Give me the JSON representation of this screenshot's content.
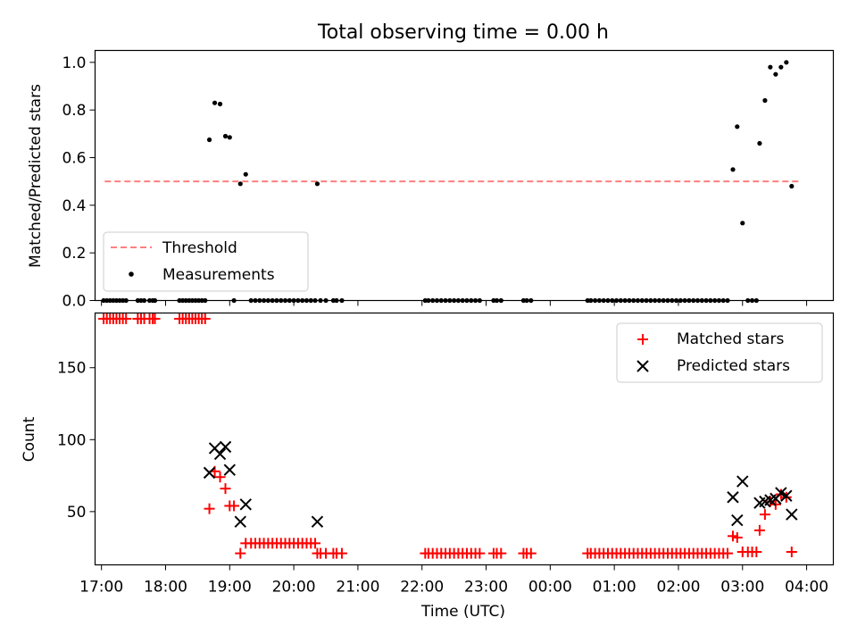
{
  "figure": {
    "title": "Total observing time = 0.00 h",
    "xlabel": "Time (UTC)",
    "x_tick_labels": [
      "17:00",
      "18:00",
      "19:00",
      "20:00",
      "21:00",
      "22:00",
      "23:00",
      "00:00",
      "01:00",
      "02:00",
      "03:00",
      "04:00"
    ]
  },
  "chart_data": [
    {
      "type": "scatter",
      "panel": "top",
      "ylabel": "Matched/Predicted stars",
      "xlim": [
        "16:54",
        "04:25"
      ],
      "ylim": [
        0,
        1.05
      ],
      "y_ticks": [
        0.0,
        0.2,
        0.4,
        0.6,
        0.8,
        1.0
      ],
      "y_tick_labels": [
        "0.0",
        "0.2",
        "0.4",
        "0.6",
        "0.8",
        "1.0"
      ],
      "legend": {
        "position": "lower-left",
        "entries": [
          "Threshold",
          "Measurements"
        ]
      },
      "threshold": {
        "name": "Threshold",
        "y": 0.5,
        "x_range": [
          "17:03",
          "03:53"
        ],
        "color": "#ff7f7f",
        "style": "dashed"
      },
      "series": [
        {
          "name": "Measurements",
          "color": "#000000",
          "points": [
            [
              "17:02",
              0
            ],
            [
              "17:05",
              0
            ],
            [
              "17:08",
              0
            ],
            [
              "17:11",
              0
            ],
            [
              "17:14",
              0
            ],
            [
              "17:17",
              0
            ],
            [
              "17:20",
              0
            ],
            [
              "17:23",
              0
            ],
            [
              "17:34",
              0
            ],
            [
              "17:37",
              0
            ],
            [
              "17:40",
              0
            ],
            [
              "17:45",
              0
            ],
            [
              "17:48",
              0
            ],
            [
              "17:50",
              0
            ],
            [
              "18:13",
              0
            ],
            [
              "18:16",
              0
            ],
            [
              "18:19",
              0
            ],
            [
              "18:22",
              0
            ],
            [
              "18:25",
              0
            ],
            [
              "18:28",
              0
            ],
            [
              "18:31",
              0
            ],
            [
              "18:34",
              0
            ],
            [
              "18:37",
              0
            ],
            [
              "18:41",
              0.675
            ],
            [
              "18:46",
              0.83
            ],
            [
              "18:51",
              0.825
            ],
            [
              "18:56",
              0.69
            ],
            [
              "19:00",
              0.685
            ],
            [
              "19:04",
              0
            ],
            [
              "19:10",
              0.49
            ],
            [
              "19:15",
              0.53
            ],
            [
              "19:20",
              0
            ],
            [
              "19:24",
              0
            ],
            [
              "19:28",
              0
            ],
            [
              "19:32",
              0
            ],
            [
              "19:36",
              0
            ],
            [
              "19:40",
              0
            ],
            [
              "19:44",
              0
            ],
            [
              "19:48",
              0
            ],
            [
              "19:52",
              0
            ],
            [
              "19:56",
              0
            ],
            [
              "20:00",
              0
            ],
            [
              "20:04",
              0
            ],
            [
              "20:08",
              0
            ],
            [
              "20:12",
              0
            ],
            [
              "20:16",
              0
            ],
            [
              "20:20",
              0
            ],
            [
              "20:22",
              0.49
            ],
            [
              "20:25",
              0
            ],
            [
              "20:30",
              0
            ],
            [
              "20:37",
              0
            ],
            [
              "20:40",
              0
            ],
            [
              "20:45",
              0
            ],
            [
              "22:03",
              0
            ],
            [
              "22:06",
              0
            ],
            [
              "22:10",
              0
            ],
            [
              "22:14",
              0
            ],
            [
              "22:18",
              0
            ],
            [
              "22:22",
              0
            ],
            [
              "22:26",
              0
            ],
            [
              "22:30",
              0
            ],
            [
              "22:34",
              0
            ],
            [
              "22:38",
              0
            ],
            [
              "22:42",
              0
            ],
            [
              "22:46",
              0
            ],
            [
              "22:50",
              0
            ],
            [
              "22:54",
              0
            ],
            [
              "23:07",
              0
            ],
            [
              "23:10",
              0
            ],
            [
              "23:14",
              0
            ],
            [
              "23:35",
              0
            ],
            [
              "23:38",
              0
            ],
            [
              "23:42",
              0
            ],
            [
              "00:35",
              0
            ],
            [
              "00:38",
              0
            ],
            [
              "00:42",
              0
            ],
            [
              "00:46",
              0
            ],
            [
              "00:50",
              0
            ],
            [
              "00:54",
              0
            ],
            [
              "00:58",
              0
            ],
            [
              "01:02",
              0
            ],
            [
              "01:06",
              0
            ],
            [
              "01:10",
              0
            ],
            [
              "01:14",
              0
            ],
            [
              "01:18",
              0
            ],
            [
              "01:22",
              0
            ],
            [
              "01:26",
              0
            ],
            [
              "01:30",
              0
            ],
            [
              "01:34",
              0
            ],
            [
              "01:38",
              0
            ],
            [
              "01:42",
              0
            ],
            [
              "01:46",
              0
            ],
            [
              "01:50",
              0
            ],
            [
              "01:54",
              0
            ],
            [
              "01:58",
              0
            ],
            [
              "02:02",
              0
            ],
            [
              "02:06",
              0
            ],
            [
              "02:10",
              0
            ],
            [
              "02:14",
              0
            ],
            [
              "02:18",
              0
            ],
            [
              "02:22",
              0
            ],
            [
              "02:26",
              0
            ],
            [
              "02:30",
              0
            ],
            [
              "02:34",
              0
            ],
            [
              "02:38",
              0
            ],
            [
              "02:42",
              0
            ],
            [
              "02:46",
              0
            ],
            [
              "02:51",
              0.55
            ],
            [
              "02:55",
              0.73
            ],
            [
              "03:00",
              0.325
            ],
            [
              "03:05",
              0
            ],
            [
              "03:09",
              0
            ],
            [
              "03:13",
              0
            ],
            [
              "03:16",
              0.66
            ],
            [
              "03:21",
              0.84
            ],
            [
              "03:26",
              0.98
            ],
            [
              "03:31",
              0.95
            ],
            [
              "03:36",
              0.98
            ],
            [
              "03:41",
              1.0
            ],
            [
              "03:46",
              0.48
            ]
          ]
        }
      ]
    },
    {
      "type": "scatter",
      "panel": "bottom",
      "ylabel": "Count",
      "xlim": [
        "16:54",
        "04:25"
      ],
      "ylim": [
        13,
        188
      ],
      "y_ticks": [
        50,
        100,
        150
      ],
      "y_tick_labels": [
        "50",
        "100",
        "150"
      ],
      "legend": {
        "position": "upper-right",
        "entries": [
          "Matched stars",
          "Predicted stars"
        ]
      },
      "series": [
        {
          "name": "Matched stars",
          "marker": "plus",
          "color": "#ff0000",
          "points": [
            [
              "17:02",
              184
            ],
            [
              "17:05",
              184
            ],
            [
              "17:08",
              184
            ],
            [
              "17:11",
              184
            ],
            [
              "17:14",
              184
            ],
            [
              "17:17",
              184
            ],
            [
              "17:20",
              184
            ],
            [
              "17:23",
              184
            ],
            [
              "17:34",
              184
            ],
            [
              "17:37",
              184
            ],
            [
              "17:40",
              184
            ],
            [
              "17:45",
              184
            ],
            [
              "17:48",
              184
            ],
            [
              "17:50",
              184
            ],
            [
              "18:13",
              184
            ],
            [
              "18:16",
              184
            ],
            [
              "18:19",
              184
            ],
            [
              "18:22",
              184
            ],
            [
              "18:25",
              184
            ],
            [
              "18:28",
              184
            ],
            [
              "18:31",
              184
            ],
            [
              "18:34",
              184
            ],
            [
              "18:37",
              184
            ],
            [
              "18:41",
              52
            ],
            [
              "18:46",
              78
            ],
            [
              "18:51",
              74
            ],
            [
              "18:56",
              66
            ],
            [
              "19:00",
              54
            ],
            [
              "19:04",
              54
            ],
            [
              "19:10",
              21
            ],
            [
              "19:15",
              28
            ],
            [
              "19:20",
              28
            ],
            [
              "19:24",
              28
            ],
            [
              "19:28",
              28
            ],
            [
              "19:32",
              28
            ],
            [
              "19:36",
              28
            ],
            [
              "19:40",
              28
            ],
            [
              "19:44",
              28
            ],
            [
              "19:48",
              28
            ],
            [
              "19:52",
              28
            ],
            [
              "19:56",
              28
            ],
            [
              "20:00",
              28
            ],
            [
              "20:04",
              28
            ],
            [
              "20:08",
              28
            ],
            [
              "20:12",
              28
            ],
            [
              "20:16",
              28
            ],
            [
              "20:20",
              28
            ],
            [
              "20:22",
              21
            ],
            [
              "20:25",
              21
            ],
            [
              "20:30",
              21
            ],
            [
              "20:37",
              21
            ],
            [
              "20:40",
              21
            ],
            [
              "20:45",
              21
            ],
            [
              "22:03",
              21
            ],
            [
              "22:06",
              21
            ],
            [
              "22:10",
              21
            ],
            [
              "22:14",
              21
            ],
            [
              "22:18",
              21
            ],
            [
              "22:22",
              21
            ],
            [
              "22:26",
              21
            ],
            [
              "22:30",
              21
            ],
            [
              "22:34",
              21
            ],
            [
              "22:38",
              21
            ],
            [
              "22:42",
              21
            ],
            [
              "22:46",
              21
            ],
            [
              "22:50",
              21
            ],
            [
              "22:54",
              21
            ],
            [
              "23:07",
              21
            ],
            [
              "23:10",
              21
            ],
            [
              "23:14",
              21
            ],
            [
              "23:35",
              21
            ],
            [
              "23:38",
              21
            ],
            [
              "23:42",
              21
            ],
            [
              "00:35",
              21
            ],
            [
              "00:38",
              21
            ],
            [
              "00:42",
              21
            ],
            [
              "00:46",
              21
            ],
            [
              "00:50",
              21
            ],
            [
              "00:54",
              21
            ],
            [
              "00:58",
              21
            ],
            [
              "01:02",
              21
            ],
            [
              "01:06",
              21
            ],
            [
              "01:10",
              21
            ],
            [
              "01:14",
              21
            ],
            [
              "01:18",
              21
            ],
            [
              "01:22",
              21
            ],
            [
              "01:26",
              21
            ],
            [
              "01:30",
              21
            ],
            [
              "01:34",
              21
            ],
            [
              "01:38",
              21
            ],
            [
              "01:42",
              21
            ],
            [
              "01:46",
              21
            ],
            [
              "01:50",
              21
            ],
            [
              "01:54",
              21
            ],
            [
              "01:58",
              21
            ],
            [
              "02:02",
              21
            ],
            [
              "02:06",
              21
            ],
            [
              "02:10",
              21
            ],
            [
              "02:14",
              21
            ],
            [
              "02:18",
              21
            ],
            [
              "02:22",
              21
            ],
            [
              "02:26",
              21
            ],
            [
              "02:30",
              21
            ],
            [
              "02:34",
              21
            ],
            [
              "02:38",
              21
            ],
            [
              "02:42",
              21
            ],
            [
              "02:46",
              21
            ],
            [
              "02:51",
              33
            ],
            [
              "02:55",
              32
            ],
            [
              "03:00",
              22
            ],
            [
              "03:05",
              22
            ],
            [
              "03:09",
              22
            ],
            [
              "03:13",
              22
            ],
            [
              "03:16",
              37
            ],
            [
              "03:21",
              48
            ],
            [
              "03:26",
              57
            ],
            [
              "03:31",
              55
            ],
            [
              "03:36",
              62
            ],
            [
              "03:41",
              60
            ],
            [
              "03:46",
              22
            ]
          ]
        },
        {
          "name": "Predicted stars",
          "marker": "x",
          "color": "#000000",
          "points": [
            [
              "18:41",
              77
            ],
            [
              "18:46",
              94
            ],
            [
              "18:51",
              90
            ],
            [
              "18:56",
              95
            ],
            [
              "19:00",
              79
            ],
            [
              "19:10",
              43
            ],
            [
              "19:15",
              55
            ],
            [
              "20:22",
              43
            ],
            [
              "02:51",
              60
            ],
            [
              "02:55",
              44
            ],
            [
              "03:00",
              71
            ],
            [
              "03:16",
              56
            ],
            [
              "03:21",
              57
            ],
            [
              "03:26",
              58
            ],
            [
              "03:31",
              59
            ],
            [
              "03:36",
              63
            ],
            [
              "03:41",
              61
            ],
            [
              "03:46",
              48
            ]
          ]
        }
      ]
    }
  ]
}
